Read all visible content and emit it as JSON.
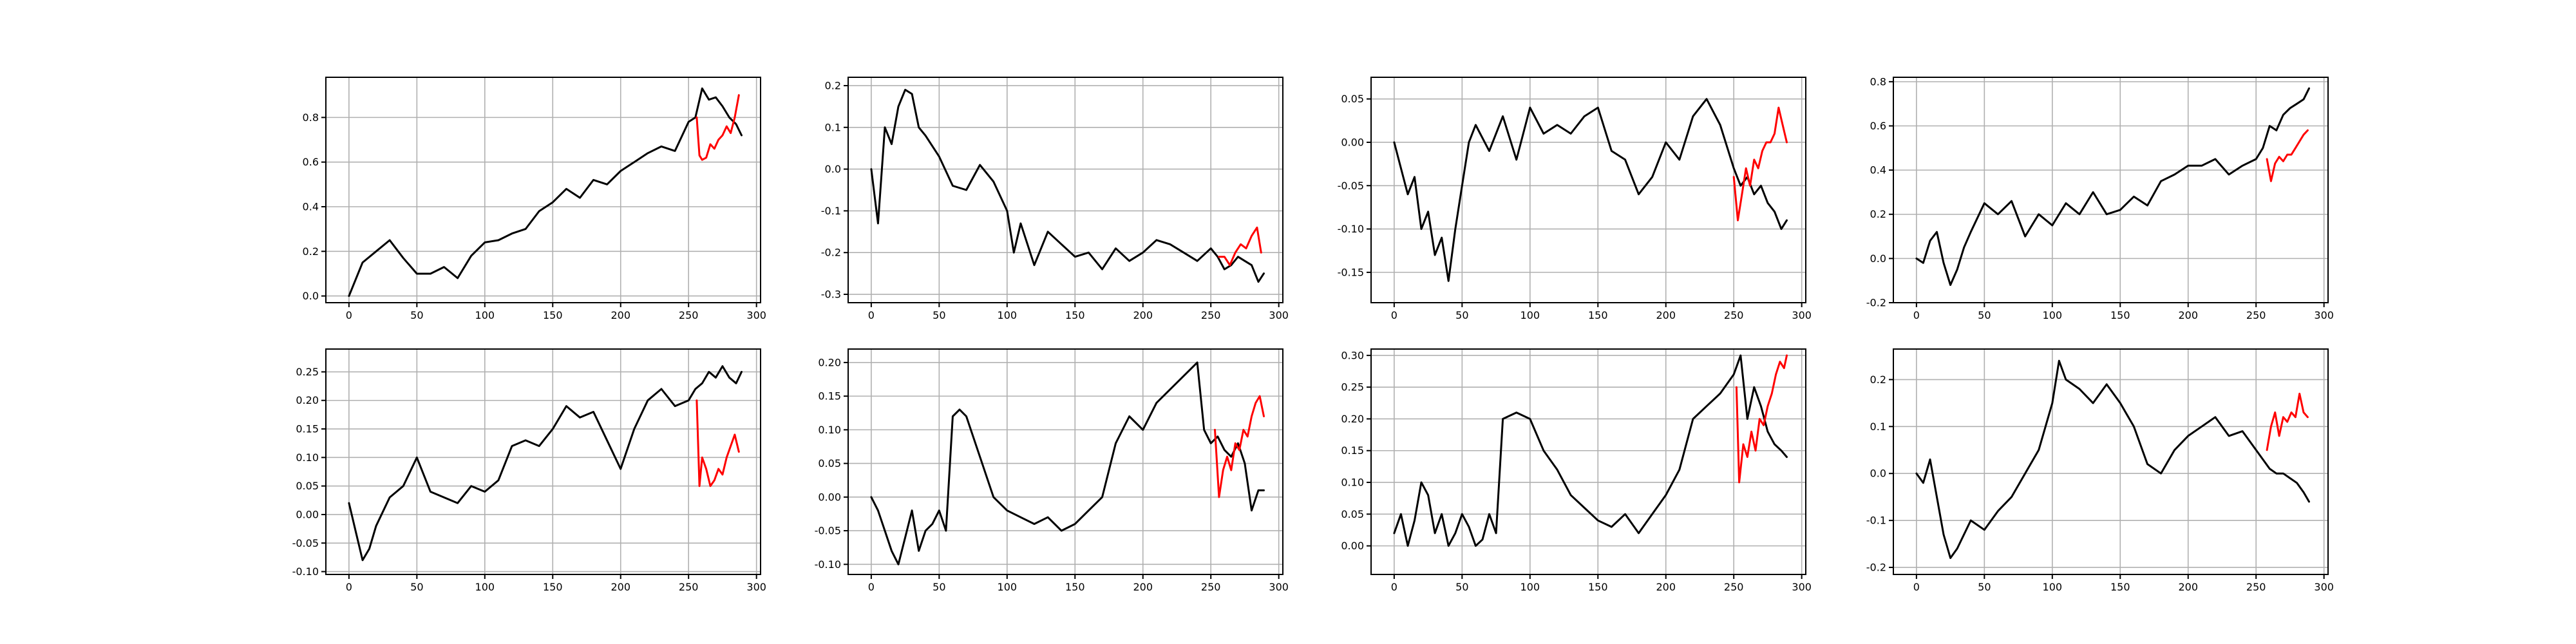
{
  "chart_data": [
    {
      "type": "line",
      "xlim": [
        -17,
        303
      ],
      "ylim": [
        -0.03,
        0.98
      ],
      "xticks": [
        0,
        50,
        100,
        150,
        200,
        250,
        300
      ],
      "yticks": [
        0.0,
        0.2,
        0.4,
        0.6,
        0.8
      ],
      "ytick_decimals": 1,
      "grid": true,
      "series": [
        {
          "color": "#000000",
          "x": [
            0,
            10,
            20,
            30,
            40,
            50,
            60,
            70,
            80,
            90,
            100,
            110,
            120,
            130,
            140,
            150,
            160,
            170,
            180,
            190,
            200,
            210,
            220,
            230,
            240,
            250,
            255,
            260,
            265,
            270,
            275,
            280,
            285,
            289
          ],
          "values": [
            0.0,
            0.15,
            0.2,
            0.25,
            0.17,
            0.1,
            0.1,
            0.13,
            0.08,
            0.18,
            0.24,
            0.25,
            0.28,
            0.3,
            0.38,
            0.42,
            0.48,
            0.44,
            0.52,
            0.5,
            0.56,
            0.6,
            0.64,
            0.67,
            0.65,
            0.78,
            0.8,
            0.93,
            0.88,
            0.89,
            0.85,
            0.8,
            0.77,
            0.72
          ]
        },
        {
          "color": "#ff0000",
          "x": [
            256,
            258,
            260,
            263,
            266,
            269,
            272,
            275,
            278,
            281,
            284,
            287
          ],
          "values": [
            0.8,
            0.63,
            0.61,
            0.62,
            0.68,
            0.66,
            0.7,
            0.72,
            0.76,
            0.73,
            0.8,
            0.9
          ]
        }
      ]
    },
    {
      "type": "line",
      "xlim": [
        -17,
        303
      ],
      "ylim": [
        -0.32,
        0.22
      ],
      "xticks": [
        0,
        50,
        100,
        150,
        200,
        250,
        300
      ],
      "yticks": [
        -0.3,
        -0.2,
        -0.1,
        0.0,
        0.1,
        0.2
      ],
      "ytick_decimals": 1,
      "grid": true,
      "series": [
        {
          "color": "#000000",
          "x": [
            0,
            5,
            10,
            15,
            20,
            25,
            30,
            35,
            40,
            50,
            60,
            70,
            80,
            90,
            100,
            105,
            110,
            120,
            130,
            140,
            150,
            160,
            170,
            180,
            190,
            200,
            210,
            220,
            230,
            240,
            250,
            255,
            260,
            265,
            270,
            275,
            280,
            285,
            289
          ],
          "values": [
            0.0,
            -0.13,
            0.1,
            0.06,
            0.15,
            0.19,
            0.18,
            0.1,
            0.08,
            0.03,
            -0.04,
            -0.05,
            0.01,
            -0.03,
            -0.1,
            -0.2,
            -0.13,
            -0.23,
            -0.15,
            -0.18,
            -0.21,
            -0.2,
            -0.24,
            -0.19,
            -0.22,
            -0.2,
            -0.17,
            -0.18,
            -0.2,
            -0.22,
            -0.19,
            -0.21,
            -0.24,
            -0.23,
            -0.21,
            -0.22,
            -0.23,
            -0.27,
            -0.25
          ]
        },
        {
          "color": "#ff0000",
          "x": [
            256,
            260,
            264,
            268,
            272,
            276,
            280,
            284,
            287
          ],
          "values": [
            -0.21,
            -0.21,
            -0.23,
            -0.2,
            -0.18,
            -0.19,
            -0.16,
            -0.14,
            -0.2
          ]
        }
      ]
    },
    {
      "type": "line",
      "xlim": [
        -17,
        303
      ],
      "ylim": [
        -0.185,
        0.075
      ],
      "xticks": [
        0,
        50,
        100,
        150,
        200,
        250,
        300
      ],
      "yticks": [
        -0.15,
        -0.1,
        -0.05,
        0.0,
        0.05
      ],
      "ytick_decimals": 2,
      "grid": true,
      "series": [
        {
          "color": "#000000",
          "x": [
            0,
            5,
            10,
            15,
            20,
            25,
            30,
            35,
            40,
            45,
            50,
            55,
            60,
            70,
            80,
            90,
            100,
            110,
            120,
            130,
            140,
            150,
            160,
            170,
            180,
            190,
            200,
            210,
            220,
            230,
            240,
            250,
            255,
            260,
            265,
            270,
            275,
            280,
            285,
            289
          ],
          "values": [
            0.0,
            -0.03,
            -0.06,
            -0.04,
            -0.1,
            -0.08,
            -0.13,
            -0.11,
            -0.16,
            -0.1,
            -0.05,
            0.0,
            0.02,
            -0.01,
            0.03,
            -0.02,
            0.04,
            0.01,
            0.02,
            0.01,
            0.03,
            0.04,
            -0.01,
            -0.02,
            -0.06,
            -0.04,
            0.0,
            -0.02,
            0.03,
            0.05,
            0.02,
            -0.03,
            -0.05,
            -0.04,
            -0.06,
            -0.05,
            -0.07,
            -0.08,
            -0.1,
            -0.09
          ]
        },
        {
          "color": "#ff0000",
          "x": [
            250,
            253,
            256,
            259,
            262,
            265,
            268,
            271,
            274,
            277,
            280,
            283,
            286,
            289
          ],
          "values": [
            -0.04,
            -0.09,
            -0.06,
            -0.03,
            -0.05,
            -0.02,
            -0.03,
            -0.01,
            0.0,
            0.0,
            0.01,
            0.04,
            0.02,
            0.0
          ]
        }
      ]
    },
    {
      "type": "line",
      "xlim": [
        -17,
        303
      ],
      "ylim": [
        -0.2,
        0.82
      ],
      "xticks": [
        0,
        50,
        100,
        150,
        200,
        250,
        300
      ],
      "yticks": [
        -0.2,
        0.0,
        0.2,
        0.4,
        0.6,
        0.8
      ],
      "ytick_decimals": 1,
      "grid": true,
      "series": [
        {
          "color": "#000000",
          "x": [
            0,
            5,
            10,
            15,
            20,
            25,
            30,
            35,
            40,
            50,
            60,
            70,
            80,
            90,
            100,
            110,
            120,
            130,
            140,
            150,
            160,
            170,
            180,
            190,
            200,
            210,
            220,
            230,
            240,
            250,
            255,
            260,
            265,
            270,
            275,
            280,
            285,
            289
          ],
          "values": [
            0.0,
            -0.02,
            0.08,
            0.12,
            -0.02,
            -0.12,
            -0.05,
            0.05,
            0.12,
            0.25,
            0.2,
            0.26,
            0.1,
            0.2,
            0.15,
            0.25,
            0.2,
            0.3,
            0.2,
            0.22,
            0.28,
            0.24,
            0.35,
            0.38,
            0.42,
            0.42,
            0.45,
            0.38,
            0.42,
            0.45,
            0.5,
            0.6,
            0.58,
            0.65,
            0.68,
            0.7,
            0.72,
            0.77
          ]
        },
        {
          "color": "#ff0000",
          "x": [
            258,
            261,
            264,
            267,
            270,
            273,
            276,
            279,
            282,
            285,
            288
          ],
          "values": [
            0.45,
            0.35,
            0.43,
            0.46,
            0.44,
            0.47,
            0.47,
            0.5,
            0.53,
            0.56,
            0.58
          ]
        }
      ]
    },
    {
      "type": "line",
      "xlim": [
        -17,
        303
      ],
      "ylim": [
        -0.105,
        0.29
      ],
      "xticks": [
        0,
        50,
        100,
        150,
        200,
        250,
        300
      ],
      "yticks": [
        -0.1,
        -0.05,
        0.0,
        0.05,
        0.1,
        0.15,
        0.2,
        0.25
      ],
      "ytick_decimals": 2,
      "grid": true,
      "series": [
        {
          "color": "#000000",
          "x": [
            0,
            5,
            10,
            15,
            20,
            30,
            40,
            50,
            60,
            70,
            80,
            90,
            100,
            110,
            120,
            130,
            140,
            150,
            160,
            170,
            180,
            190,
            200,
            210,
            220,
            230,
            240,
            250,
            255,
            260,
            265,
            270,
            275,
            280,
            285,
            289
          ],
          "values": [
            0.02,
            -0.03,
            -0.08,
            -0.06,
            -0.02,
            0.03,
            0.05,
            0.1,
            0.04,
            0.03,
            0.02,
            0.05,
            0.04,
            0.06,
            0.12,
            0.13,
            0.12,
            0.15,
            0.19,
            0.17,
            0.18,
            0.13,
            0.08,
            0.15,
            0.2,
            0.22,
            0.19,
            0.2,
            0.22,
            0.23,
            0.25,
            0.24,
            0.26,
            0.24,
            0.23,
            0.25
          ]
        },
        {
          "color": "#ff0000",
          "x": [
            256,
            258,
            260,
            263,
            266,
            269,
            272,
            275,
            278,
            281,
            284,
            287
          ],
          "values": [
            0.2,
            0.05,
            0.1,
            0.08,
            0.05,
            0.06,
            0.08,
            0.07,
            0.1,
            0.12,
            0.14,
            0.11
          ]
        }
      ]
    },
    {
      "type": "line",
      "xlim": [
        -17,
        303
      ],
      "ylim": [
        -0.115,
        0.22
      ],
      "xticks": [
        0,
        50,
        100,
        150,
        200,
        250,
        300
      ],
      "yticks": [
        -0.1,
        -0.05,
        0.0,
        0.05,
        0.1,
        0.15,
        0.2
      ],
      "ytick_decimals": 2,
      "grid": true,
      "series": [
        {
          "color": "#000000",
          "x": [
            0,
            5,
            10,
            15,
            20,
            25,
            30,
            35,
            40,
            45,
            50,
            55,
            60,
            65,
            70,
            80,
            90,
            100,
            110,
            120,
            130,
            140,
            150,
            160,
            170,
            180,
            190,
            200,
            210,
            220,
            230,
            240,
            245,
            250,
            255,
            260,
            265,
            270,
            275,
            280,
            285,
            289
          ],
          "values": [
            0.0,
            -0.02,
            -0.05,
            -0.08,
            -0.1,
            -0.06,
            -0.02,
            -0.08,
            -0.05,
            -0.04,
            -0.02,
            -0.05,
            0.12,
            0.13,
            0.12,
            0.06,
            0.0,
            -0.02,
            -0.03,
            -0.04,
            -0.03,
            -0.05,
            -0.04,
            -0.02,
            0.0,
            0.08,
            0.12,
            0.1,
            0.14,
            0.16,
            0.18,
            0.2,
            0.1,
            0.08,
            0.09,
            0.07,
            0.06,
            0.08,
            0.05,
            -0.02,
            0.01,
            0.01
          ]
        },
        {
          "color": "#ff0000",
          "x": [
            253,
            256,
            259,
            262,
            265,
            268,
            271,
            274,
            277,
            280,
            283,
            286,
            289
          ],
          "values": [
            0.1,
            0.0,
            0.04,
            0.06,
            0.04,
            0.08,
            0.07,
            0.1,
            0.09,
            0.12,
            0.14,
            0.15,
            0.12
          ]
        }
      ]
    },
    {
      "type": "line",
      "xlim": [
        -17,
        303
      ],
      "ylim": [
        -0.045,
        0.31
      ],
      "xticks": [
        0,
        50,
        100,
        150,
        200,
        250,
        300
      ],
      "yticks": [
        0.0,
        0.05,
        0.1,
        0.15,
        0.2,
        0.25,
        0.3
      ],
      "ytick_decimals": 2,
      "grid": true,
      "series": [
        {
          "color": "#000000",
          "x": [
            0,
            5,
            10,
            15,
            20,
            25,
            30,
            35,
            40,
            45,
            50,
            55,
            60,
            65,
            70,
            75,
            80,
            90,
            100,
            110,
            120,
            130,
            140,
            150,
            160,
            170,
            180,
            190,
            200,
            210,
            220,
            230,
            240,
            250,
            255,
            260,
            265,
            270,
            275,
            280,
            285,
            289
          ],
          "values": [
            0.02,
            0.05,
            0.0,
            0.04,
            0.1,
            0.08,
            0.02,
            0.05,
            0.0,
            0.02,
            0.05,
            0.03,
            0.0,
            0.01,
            0.05,
            0.02,
            0.2,
            0.21,
            0.2,
            0.15,
            0.12,
            0.08,
            0.06,
            0.04,
            0.03,
            0.05,
            0.02,
            0.05,
            0.08,
            0.12,
            0.2,
            0.22,
            0.24,
            0.27,
            0.3,
            0.2,
            0.25,
            0.22,
            0.18,
            0.16,
            0.15,
            0.14
          ]
        },
        {
          "color": "#ff0000",
          "x": [
            252,
            254,
            257,
            260,
            263,
            266,
            269,
            272,
            275,
            278,
            281,
            284,
            287,
            289
          ],
          "values": [
            0.25,
            0.1,
            0.16,
            0.14,
            0.18,
            0.15,
            0.2,
            0.19,
            0.22,
            0.24,
            0.27,
            0.29,
            0.28,
            0.3
          ]
        }
      ]
    },
    {
      "type": "line",
      "xlim": [
        -17,
        303
      ],
      "ylim": [
        -0.215,
        0.265
      ],
      "xticks": [
        0,
        50,
        100,
        150,
        200,
        250,
        300
      ],
      "yticks": [
        -0.2,
        -0.1,
        0.0,
        0.1,
        0.2
      ],
      "ytick_decimals": 1,
      "grid": true,
      "series": [
        {
          "color": "#000000",
          "x": [
            0,
            5,
            10,
            15,
            20,
            25,
            30,
            40,
            50,
            60,
            70,
            80,
            90,
            100,
            105,
            110,
            120,
            130,
            140,
            150,
            160,
            170,
            180,
            190,
            200,
            210,
            220,
            230,
            240,
            250,
            255,
            260,
            265,
            270,
            275,
            280,
            285,
            289
          ],
          "values": [
            0.0,
            -0.02,
            0.03,
            -0.05,
            -0.13,
            -0.18,
            -0.16,
            -0.1,
            -0.12,
            -0.08,
            -0.05,
            0.0,
            0.05,
            0.15,
            0.24,
            0.2,
            0.18,
            0.15,
            0.19,
            0.15,
            0.1,
            0.02,
            0.0,
            0.05,
            0.08,
            0.1,
            0.12,
            0.08,
            0.09,
            0.05,
            0.03,
            0.01,
            0.0,
            0.0,
            -0.01,
            -0.02,
            -0.04,
            -0.06
          ]
        },
        {
          "color": "#ff0000",
          "x": [
            258,
            261,
            264,
            267,
            270,
            273,
            276,
            279,
            282,
            285,
            288
          ],
          "values": [
            0.05,
            0.1,
            0.13,
            0.08,
            0.12,
            0.11,
            0.13,
            0.12,
            0.17,
            0.13,
            0.12
          ]
        }
      ]
    }
  ]
}
